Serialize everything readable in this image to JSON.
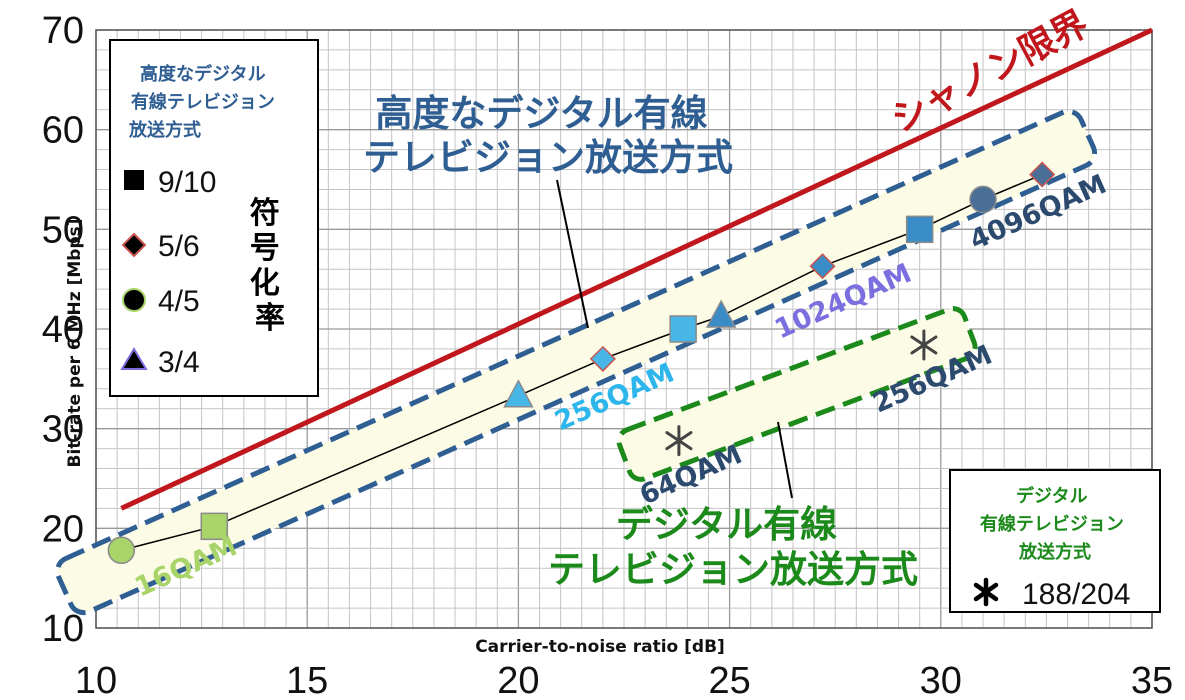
{
  "chart_data": {
    "type": "scatter",
    "xlabel": "Carrier-to-noise ratio [dB]",
    "ylabel": "Bit-rate per 6 MHz [Mbps]",
    "xlim": [
      10,
      35
    ],
    "ylim": [
      10,
      70
    ],
    "x_ticks": [
      "10",
      "15",
      "20",
      "25",
      "30",
      "35"
    ],
    "y_ticks": [
      "10",
      "20",
      "30",
      "40",
      "50",
      "60",
      "70"
    ],
    "grid": true,
    "shannon": {
      "label": "シャノン限界",
      "color": "#c0171d",
      "points": [
        [
          10.6,
          22
        ],
        [
          35,
          70
        ]
      ]
    },
    "advanced_series": {
      "line_points": [
        [
          10.6,
          17.8
        ],
        [
          12.8,
          20.2
        ],
        [
          20,
          33.3
        ],
        [
          22,
          37
        ],
        [
          23.9,
          40
        ],
        [
          24.8,
          41.3
        ],
        [
          27.2,
          46.3
        ],
        [
          29.5,
          50
        ],
        [
          31,
          53
        ],
        [
          32.4,
          55.5
        ]
      ],
      "points": [
        {
          "x": 10.6,
          "y": 17.8,
          "marker": "circle",
          "color": "#a9d46a"
        },
        {
          "x": 12.8,
          "y": 20.2,
          "marker": "square",
          "color": "#a9d46a"
        },
        {
          "x": 20,
          "y": 33.3,
          "marker": "triangle",
          "color": "#49b6e8"
        },
        {
          "x": 22,
          "y": 37,
          "marker": "diamond",
          "color": "#49b6e8"
        },
        {
          "x": 23.9,
          "y": 40,
          "marker": "square",
          "color": "#49b6e8"
        },
        {
          "x": 24.8,
          "y": 41.3,
          "marker": "triangle",
          "color": "#3a8cc6"
        },
        {
          "x": 27.2,
          "y": 46.3,
          "marker": "diamond",
          "color": "#3a8cc6"
        },
        {
          "x": 29.5,
          "y": 50,
          "marker": "square",
          "color": "#3a8cc6"
        },
        {
          "x": 31,
          "y": 53,
          "marker": "circle",
          "color": "#4a6e96"
        },
        {
          "x": 32.4,
          "y": 55.5,
          "marker": "diamond",
          "color": "#4a6e96"
        }
      ],
      "band_color": "#2f5e92",
      "title_lines": [
        "高度なデジタル有線",
        "テレビジョン放送方式"
      ],
      "title_color": "#2f5e92"
    },
    "conventional_series": {
      "points": [
        {
          "x": 23.8,
          "y": 28.8,
          "marker": "asterisk"
        },
        {
          "x": 29.6,
          "y": 38.4,
          "marker": "asterisk"
        }
      ],
      "band_color": "#1b8a1b",
      "title_lines": [
        "デジタル有線",
        "テレビジョン放送方式"
      ],
      "title_color": "#1b8a1b"
    },
    "modulation_labels": [
      {
        "text": "16QAM",
        "color": "#a9d46a"
      },
      {
        "text": "256QAM",
        "color": "#2db6ec"
      },
      {
        "text": "1024QAM",
        "color": "#7b6fe0"
      },
      {
        "text": "4096QAM",
        "color": "#2c4a6e"
      },
      {
        "text": "64QAM",
        "color": "#2c4a6e"
      },
      {
        "text": "256QAM",
        "color": "#2c4a6e"
      }
    ],
    "legend_advanced": {
      "title_lines": [
        "高度なデジタル",
        "有線テレビジョン",
        "放送方式"
      ],
      "title_color": "#2f5e92",
      "items": [
        {
          "marker": "square",
          "label": "9/10"
        },
        {
          "marker": "diamond",
          "label": "5/6"
        },
        {
          "marker": "circle",
          "label": "4/5"
        },
        {
          "marker": "triangle",
          "label": "3/4"
        }
      ],
      "side_label_chars": [
        "符",
        "号",
        "化",
        "率"
      ]
    },
    "legend_conventional": {
      "title_lines": [
        "デジタル",
        "有線テレビジョン",
        "放送方式"
      ],
      "title_color": "#1b8a1b",
      "items": [
        {
          "marker": "asterisk",
          "label": "188/204"
        }
      ]
    }
  }
}
